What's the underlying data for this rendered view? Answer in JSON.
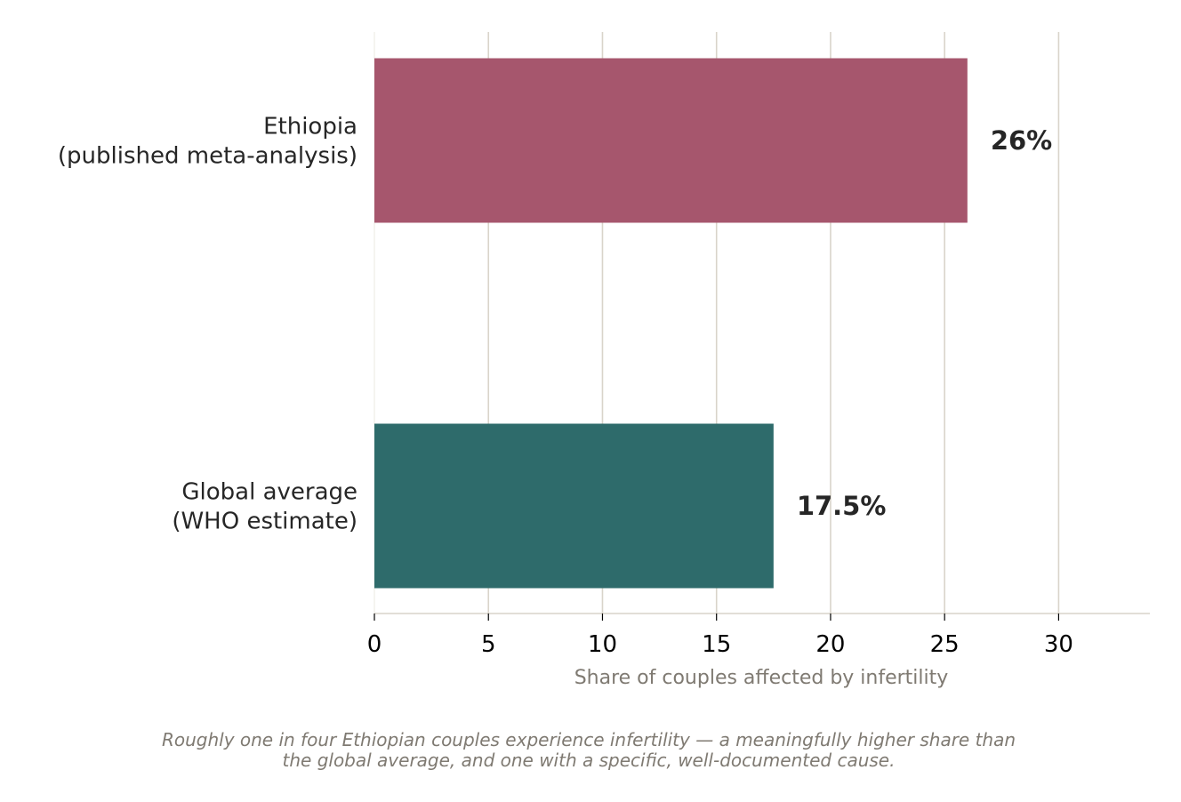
{
  "chart_data": {
    "type": "bar",
    "orientation": "horizontal",
    "categories": [
      [
        "Ethiopia",
        "(published meta-analysis)"
      ],
      [
        "Global average",
        "(WHO estimate)"
      ]
    ],
    "values": [
      26,
      17.5
    ],
    "value_labels": [
      "26%",
      "17.5%"
    ],
    "colors": [
      "#a6566d",
      "#2e6b6b"
    ],
    "xlabel": "Share of couples affected by infertility",
    "xlim": [
      0,
      34
    ],
    "xticks": [
      0,
      5,
      10,
      15,
      20,
      25,
      30
    ],
    "grid": "vertical"
  },
  "caption": [
    "Roughly one in four Ethiopian couples experience infertility — a meaningfully higher share than",
    "the global average, and one with a specific, well-documented cause."
  ]
}
